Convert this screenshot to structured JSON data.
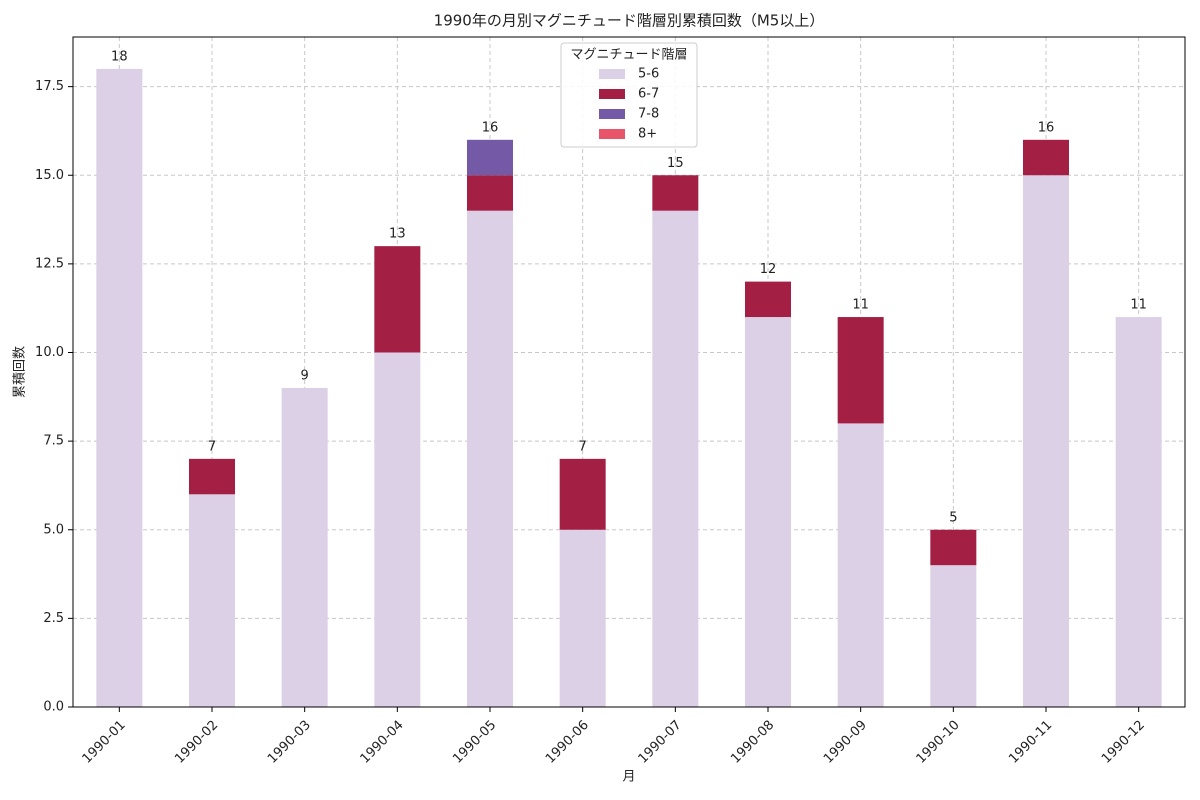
{
  "chart_data": {
    "type": "stacked_bar",
    "title": "1990年の月別マグニチュード階層別累積回数（M5以上）",
    "x_label": "月",
    "y_label": "累積回数",
    "legend_title": "マグニチュード階層",
    "legend_position": "upper center",
    "categories": [
      "1990-01",
      "1990-02",
      "1990-03",
      "1990-04",
      "1990-05",
      "1990-06",
      "1990-07",
      "1990-08",
      "1990-09",
      "1990-10",
      "1990-11",
      "1990-12"
    ],
    "series": [
      {
        "name": "5-6",
        "color": "#dcd0e6",
        "values": [
          18,
          6,
          9,
          10,
          14,
          5,
          14,
          11,
          8,
          4,
          15,
          11
        ]
      },
      {
        "name": "6-7",
        "color": "#a31f44",
        "values": [
          0,
          1,
          0,
          3,
          1,
          2,
          1,
          1,
          3,
          1,
          1,
          0
        ]
      },
      {
        "name": "7-8",
        "color": "#7459a6",
        "values": [
          0,
          0,
          0,
          0,
          1,
          0,
          0,
          0,
          0,
          0,
          0,
          0
        ]
      },
      {
        "name": "8+",
        "color": "#e8546a",
        "values": [
          0,
          0,
          0,
          0,
          0,
          0,
          0,
          0,
          0,
          0,
          0,
          0
        ]
      }
    ],
    "totals": [
      18,
      7,
      9,
      13,
      16,
      7,
      15,
      12,
      11,
      5,
      16,
      11
    ],
    "ylim": [
      0,
      18.9
    ],
    "yticks": [
      {
        "value": 0,
        "label": "0.0"
      },
      {
        "value": 2.5,
        "label": "2.5"
      },
      {
        "value": 5,
        "label": "5.0"
      },
      {
        "value": 7.5,
        "label": "7.5"
      },
      {
        "value": 10,
        "label": "10.0"
      },
      {
        "value": 12.5,
        "label": "12.5"
      },
      {
        "value": 15,
        "label": "15.0"
      },
      {
        "value": 17.5,
        "label": "17.5"
      }
    ],
    "grid": true
  }
}
